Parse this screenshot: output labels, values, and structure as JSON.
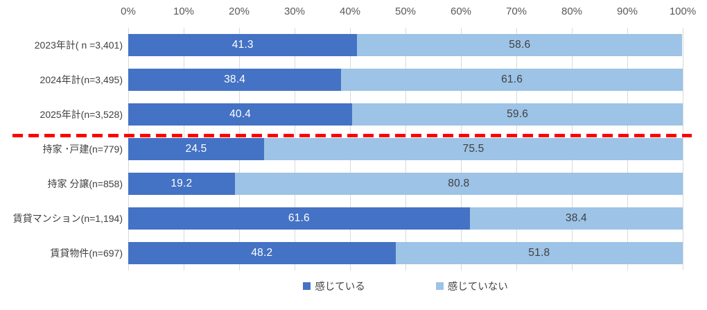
{
  "chart_data": {
    "type": "bar",
    "subtype": "horizontal-stacked-percentage",
    "title": "",
    "xlabel": "",
    "ylabel": "",
    "xlim": [
      0,
      100
    ],
    "grid": true,
    "legend_position": "bottom",
    "x_ticks": [
      "0%",
      "10%",
      "20%",
      "30%",
      "40%",
      "50%",
      "60%",
      "70%",
      "80%",
      "90%",
      "100%"
    ],
    "categories": [
      "2023年計( n =3,401)",
      "2024年計(n=3,495)",
      "2025年計(n=3,528)",
      "持家 ･戸建(n=779)",
      "持家 分譲(n=858)",
      "賃貸マンション(n=1,194)",
      "賃貸物件(n=697)"
    ],
    "series": [
      {
        "name": "感じている",
        "color": "#4472C4",
        "label_color": "#FFFFFF",
        "values": [
          41.3,
          38.4,
          40.4,
          24.5,
          19.2,
          61.6,
          48.2
        ]
      },
      {
        "name": "感じていない",
        "color": "#9DC3E6",
        "label_color": "#404040",
        "values": [
          58.6,
          61.6,
          59.6,
          75.5,
          80.8,
          38.4,
          51.8
        ]
      }
    ],
    "separator_line": {
      "after_category_index": 2,
      "color": "#FF0000",
      "style": "dashed"
    },
    "colors": {
      "axis_text": "#595959",
      "category_text": "#404040",
      "gridline": "#D9D9D9",
      "background": "#FFFFFF"
    }
  }
}
